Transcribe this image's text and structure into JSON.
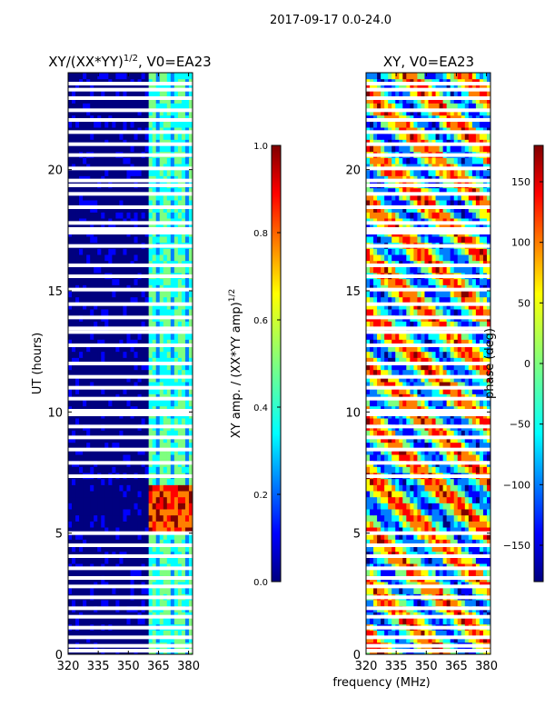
{
  "figure": {
    "suptitle": "2017-09-17 0.0-24.0",
    "shared_xlabel": "frequency (MHz)",
    "colors": {
      "jet": [
        "#00007f",
        "#0000ff",
        "#007fff",
        "#00ffff",
        "#7fff7f",
        "#ffff00",
        "#ff7f00",
        "#ff0000",
        "#7f0000"
      ],
      "background": "#ffffff"
    }
  },
  "chart_data": [
    {
      "type": "heatmap",
      "title": "XY/(XX*YY)^1/2, V0=EA23",
      "title_main": "XY/(XX*YY)",
      "title_sup": "1/2",
      "title_tail": ", V0=EA23",
      "xlabel": "",
      "ylabel": "UT (hours)",
      "xlim": [
        320,
        382
      ],
      "ylim": [
        0,
        24
      ],
      "xticks": [
        "320",
        "335",
        "350",
        "365",
        "380"
      ],
      "xtick_values": [
        320,
        335,
        350,
        365,
        380
      ],
      "yticks": [
        "0",
        "5",
        "10",
        "15",
        "20"
      ],
      "ytick_values": [
        0,
        5,
        10,
        15,
        20
      ],
      "colorbar": {
        "label": "XY amp. / (XX*YY amp)^1/2",
        "label_main": "XY amp. / (XX*YY amp)",
        "label_sup": "1/2",
        "range": [
          0.0,
          1.0
        ],
        "ticks": [
          "0.0",
          "0.2",
          "0.4",
          "0.6",
          "0.8",
          "1.0"
        ],
        "tick_values": [
          0.0,
          0.2,
          0.4,
          0.6,
          0.8,
          1.0
        ]
      },
      "description_values": {
        "background_level": 0.02,
        "bright_channel_band_mhz": [
          360,
          382
        ],
        "peak_hours": [
          5,
          7
        ]
      }
    },
    {
      "type": "heatmap",
      "title": "XY, V0=EA23",
      "xlabel": "frequency (MHz)",
      "ylabel": "",
      "xlim": [
        320,
        382
      ],
      "ylim": [
        0,
        24
      ],
      "xticks": [
        "320",
        "335",
        "350",
        "365",
        "380"
      ],
      "xtick_values": [
        320,
        335,
        350,
        365,
        380
      ],
      "yticks": [
        "0",
        "5",
        "10",
        "15",
        "20"
      ],
      "ytick_values": [
        0,
        5,
        10,
        15,
        20
      ],
      "colorbar": {
        "label": "phase (deg)",
        "range": [
          -180,
          180
        ],
        "ticks": [
          "150",
          "100",
          "50",
          "0",
          "−50",
          "−100",
          "−150"
        ],
        "tick_values": [
          150,
          100,
          50,
          0,
          -50,
          -100,
          -150
        ]
      }
    }
  ],
  "flagged_hours": [
    0.15,
    0.35,
    0.7,
    1.1,
    1.55,
    1.9,
    2.35,
    2.8,
    3.15,
    3.55,
    4.05,
    4.5,
    5.0,
    7.35,
    7.9,
    8.45,
    8.95,
    9.4,
    9.9,
    10.05,
    10.55,
    11.0,
    11.45,
    12.0,
    12.75,
    13.3,
    13.45,
    13.9,
    14.45,
    15.05,
    15.6,
    16.05,
    16.85,
    17.4,
    17.55,
    17.8,
    18.45,
    19.0,
    19.35,
    19.55,
    20.05,
    20.6,
    21.05,
    21.55,
    22.05,
    22.45,
    22.95,
    23.3,
    23.55
  ]
}
